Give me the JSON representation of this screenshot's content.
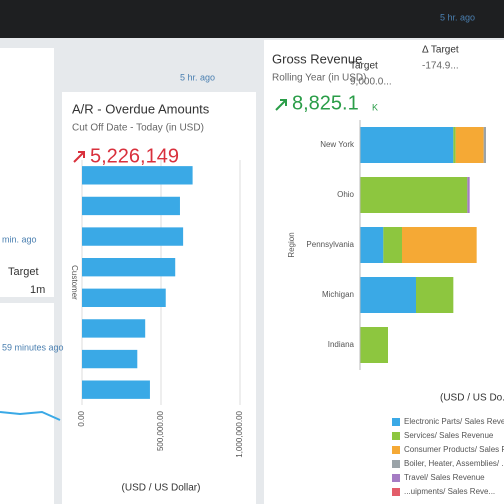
{
  "left_tile": {
    "refresh": "min. ago",
    "target_label": "Target",
    "target_value": "1m"
  },
  "left_tile_2": {
    "refresh": "59 minutes ago"
  },
  "ar_tile": {
    "refresh": "5 hr. ago",
    "title": "A/R - Overdue Amounts",
    "subtitle": "Cut Off Date - Today (in USD)",
    "kpi": "5,226,149"
  },
  "revenue_tile": {
    "refresh": "5 hr. ago",
    "title": "Gross Revenue",
    "subtitle": "Rolling Year (in USD)",
    "kpi": "8,825.1",
    "kpi_unit": "K",
    "target_label": "Target",
    "target_value": "9,000.0...",
    "delta_label": "Δ Target",
    "delta_value": "-174.9..."
  },
  "chart_data": [
    {
      "type": "hbar",
      "y_label": "Customer",
      "x_label": "(USD / US Dollar)",
      "categories": [
        null,
        null,
        null,
        null,
        null,
        null,
        null,
        null
      ],
      "values": [
        700000,
        620000,
        640000,
        590000,
        530000,
        400000,
        350000,
        430000
      ],
      "color": "#3aa9e6",
      "xlim": [
        0,
        1000000
      ],
      "xticks": [
        {
          "value": 0,
          "label": "0.00"
        },
        {
          "value": 500000,
          "label": "500,000.00"
        },
        {
          "value": 1000000,
          "label": "1,000,000.00"
        }
      ],
      "grid": true
    },
    {
      "type": "stacked_hbar",
      "y_label": "Region",
      "x_label": "(USD / US Do...",
      "categories": [
        "New York",
        "Ohio",
        "Pennsylvania",
        "Michigan",
        "Indiana"
      ],
      "xlim": [
        0,
        3
      ],
      "series": [
        {
          "name": "Electronic Parts/ Sales Revenue",
          "color": "#3aa9e6",
          "values": [
            2.0,
            0,
            0.5,
            1.2,
            0
          ]
        },
        {
          "name": "Services/ Sales Revenue",
          "color": "#8dc63f",
          "values": [
            0.05,
            2.3,
            0.4,
            0.8,
            0.6
          ]
        },
        {
          "name": "Consumer Products/ Sales Revenue",
          "color": "#f5a935",
          "values": [
            0.6,
            0,
            1.6,
            0,
            0
          ]
        },
        {
          "name": "Boiler, Heater, Assemblies/ ...",
          "color": "#9aa3a8",
          "values": [
            0.05,
            0,
            0,
            0,
            0
          ]
        },
        {
          "name": "Travel/ Sales Revenue",
          "color": "#a57cc4",
          "values": [
            0,
            0.05,
            0,
            0,
            0
          ]
        },
        {
          "name": "...uipments/ Sales Reve...",
          "color": "#e35d6a",
          "values": [
            0,
            0,
            0,
            0,
            0
          ]
        }
      ]
    }
  ]
}
